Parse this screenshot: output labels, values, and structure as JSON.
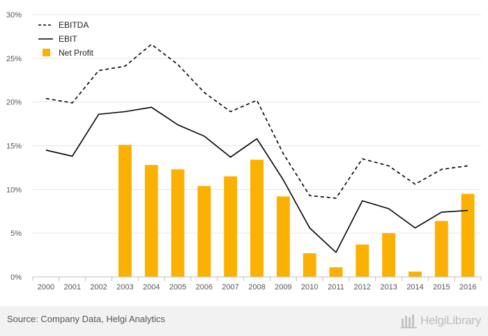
{
  "chart_data": {
    "type": "bar",
    "categories": [
      "2000",
      "2001",
      "2002",
      "2003",
      "2004",
      "2005",
      "2006",
      "2007",
      "2008",
      "2009",
      "2010",
      "2011",
      "2012",
      "2013",
      "2014",
      "2015",
      "2016"
    ],
    "series": [
      {
        "name": "EBITDA",
        "kind": "line",
        "style": "dashed",
        "color": "#000000",
        "values": [
          20.4,
          19.9,
          23.6,
          24.1,
          26.6,
          24.3,
          21.1,
          18.9,
          20.2,
          14.1,
          9.3,
          9.0,
          13.5,
          12.7,
          10.6,
          12.3,
          12.7
        ]
      },
      {
        "name": "EBIT",
        "kind": "line",
        "style": "solid",
        "color": "#000000",
        "values": [
          14.5,
          13.8,
          18.6,
          18.9,
          19.4,
          17.4,
          16.1,
          13.7,
          15.8,
          11.1,
          5.6,
          2.8,
          8.7,
          7.8,
          5.6,
          7.4,
          7.6
        ]
      },
      {
        "name": "Net Profit",
        "kind": "bar",
        "color": "#FBB102",
        "values": [
          null,
          null,
          null,
          15.1,
          12.8,
          12.3,
          10.4,
          11.5,
          13.4,
          9.2,
          2.7,
          1.1,
          3.7,
          5.0,
          0.6,
          6.4,
          9.5
        ]
      }
    ],
    "ylim": [
      0,
      30
    ],
    "yticks": [
      "0%",
      "5%",
      "10%",
      "15%",
      "20%",
      "25%",
      "30%"
    ],
    "grid": true,
    "legend": "top-left"
  },
  "footer": {
    "source": "Source: Company Data, Helgi Analytics",
    "brand": "HelgiLibrary"
  }
}
